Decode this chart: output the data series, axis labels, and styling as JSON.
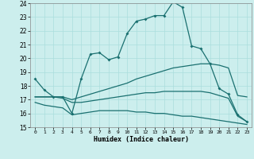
{
  "xlabel": "Humidex (Indice chaleur)",
  "xlim": [
    -0.5,
    23.5
  ],
  "ylim": [
    15,
    24
  ],
  "xticks": [
    0,
    1,
    2,
    3,
    4,
    5,
    6,
    7,
    8,
    9,
    10,
    11,
    12,
    13,
    14,
    15,
    16,
    17,
    18,
    19,
    20,
    21,
    22,
    23
  ],
  "yticks": [
    15,
    16,
    17,
    18,
    19,
    20,
    21,
    22,
    23,
    24
  ],
  "bg_color": "#cceeed",
  "line_color": "#1a7070",
  "grid_color": "#aadddd",
  "line1_x": [
    0,
    1,
    2,
    3,
    4,
    5,
    6,
    7,
    8,
    9,
    10,
    11,
    12,
    13,
    14,
    15,
    16,
    17,
    18,
    19,
    20,
    21,
    22,
    23
  ],
  "line1_y": [
    18.5,
    17.7,
    17.2,
    17.2,
    16.0,
    18.5,
    20.3,
    20.4,
    19.9,
    20.1,
    21.8,
    22.7,
    22.85,
    23.1,
    23.1,
    24.1,
    23.7,
    20.9,
    20.7,
    19.6,
    17.8,
    17.4,
    15.9,
    15.4
  ],
  "line2_x": [
    0,
    1,
    2,
    3,
    4,
    5,
    6,
    7,
    8,
    9,
    10,
    11,
    12,
    13,
    14,
    15,
    16,
    17,
    18,
    19,
    20,
    21,
    22,
    23
  ],
  "line2_y": [
    17.2,
    17.2,
    17.2,
    17.2,
    17.0,
    17.2,
    17.4,
    17.6,
    17.8,
    18.0,
    18.2,
    18.5,
    18.7,
    18.9,
    19.1,
    19.3,
    19.4,
    19.5,
    19.6,
    19.6,
    19.5,
    19.3,
    17.3,
    17.2
  ],
  "line3_x": [
    0,
    1,
    2,
    3,
    4,
    5,
    6,
    7,
    8,
    9,
    10,
    11,
    12,
    13,
    14,
    15,
    16,
    17,
    18,
    19,
    20,
    21,
    22,
    23
  ],
  "line3_y": [
    17.2,
    17.2,
    17.2,
    17.1,
    16.8,
    16.8,
    16.9,
    17.0,
    17.1,
    17.2,
    17.3,
    17.4,
    17.5,
    17.5,
    17.6,
    17.6,
    17.6,
    17.6,
    17.6,
    17.5,
    17.3,
    17.1,
    15.8,
    15.4
  ],
  "line4_x": [
    0,
    1,
    2,
    3,
    4,
    5,
    6,
    7,
    8,
    9,
    10,
    11,
    12,
    13,
    14,
    15,
    16,
    17,
    18,
    19,
    20,
    21,
    22,
    23
  ],
  "line4_y": [
    16.8,
    16.6,
    16.5,
    16.4,
    15.9,
    16.0,
    16.1,
    16.2,
    16.2,
    16.2,
    16.2,
    16.1,
    16.1,
    16.0,
    16.0,
    15.9,
    15.8,
    15.8,
    15.7,
    15.6,
    15.5,
    15.4,
    15.3,
    15.2
  ]
}
